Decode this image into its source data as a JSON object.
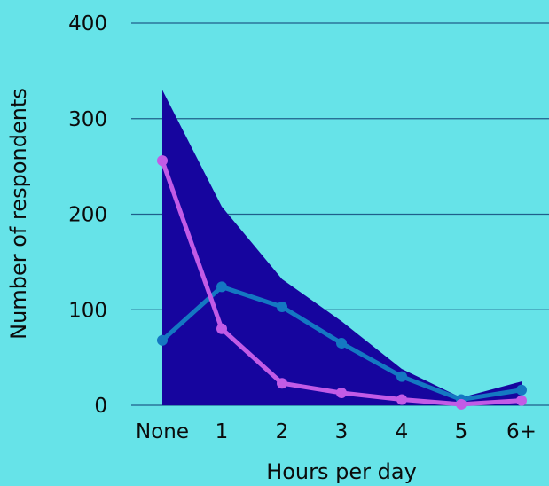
{
  "colors": {
    "background": "#66e3e8",
    "grid": "#1f5f8b",
    "area": "#16059e",
    "line_blue": "#1478c2",
    "line_purple": "#c25be6"
  },
  "chart_data": {
    "type": "line",
    "xlabel": "Hours per day",
    "ylabel": "Number of respondents",
    "categories": [
      "None",
      "1",
      "2",
      "3",
      "4",
      "5",
      "6+"
    ],
    "ylim": [
      0,
      400
    ],
    "yticks": [
      0,
      100,
      200,
      300,
      400
    ],
    "grid": true,
    "series": [
      {
        "kind": "area",
        "color": "#16059e",
        "values": [
          330,
          208,
          132,
          88,
          38,
          8,
          25
        ]
      },
      {
        "kind": "line",
        "color": "#1478c2",
        "values": [
          68,
          124,
          103,
          65,
          30,
          6,
          16
        ]
      },
      {
        "kind": "line",
        "color": "#c25be6",
        "values": [
          256,
          80,
          23,
          13,
          6,
          1,
          5
        ]
      }
    ]
  }
}
